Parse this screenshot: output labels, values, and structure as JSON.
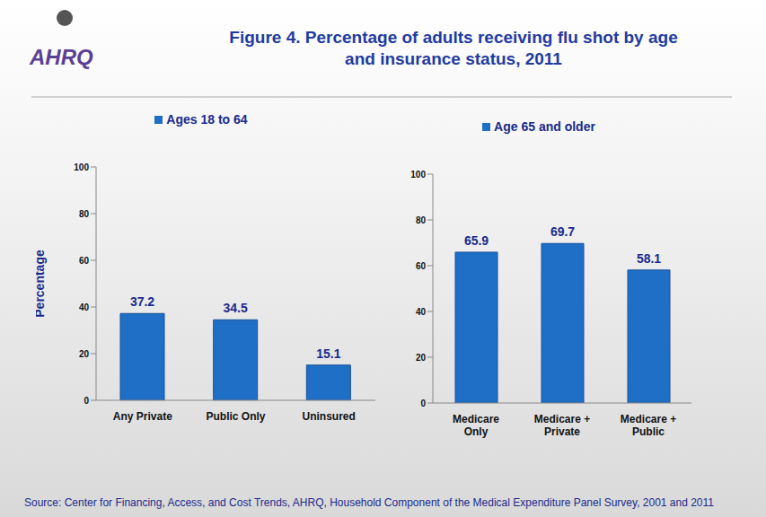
{
  "title": "Figure 4. Percentage of adults receiving flu shot by age and insurance status, 2011",
  "logo": "AHRQ",
  "source": "Source: Center for Financing, Access, and Cost Trends, AHRQ, Household Component of the Medical Expenditure Panel Survey, 2001 and 2011",
  "chart_data": [
    {
      "type": "bar",
      "y_label": "Percentage",
      "categories": [
        "Any Private",
        "Public Only",
        "Uninsured"
      ],
      "series": [
        {
          "name": "Ages 18 to 64",
          "color": "#1f6fc6",
          "values": [
            37.2,
            34.5,
            15.1
          ]
        }
      ],
      "ylim": [
        0,
        100
      ],
      "yticks": [
        0,
        20,
        40,
        60,
        80,
        100
      ],
      "grid": false,
      "legend": "top",
      "data_labels": true
    },
    {
      "type": "bar",
      "categories": [
        "Medicare Only",
        "Medicare + Private",
        "Medicare + Public"
      ],
      "series": [
        {
          "name": "Age 65 and older",
          "color": "#1f6fc6",
          "values": [
            65.9,
            69.7,
            58.1
          ]
        }
      ],
      "ylim": [
        0,
        100
      ],
      "yticks": [
        0,
        20,
        40,
        60,
        80,
        100
      ],
      "grid": false,
      "legend": "top",
      "data_labels": true
    }
  ]
}
